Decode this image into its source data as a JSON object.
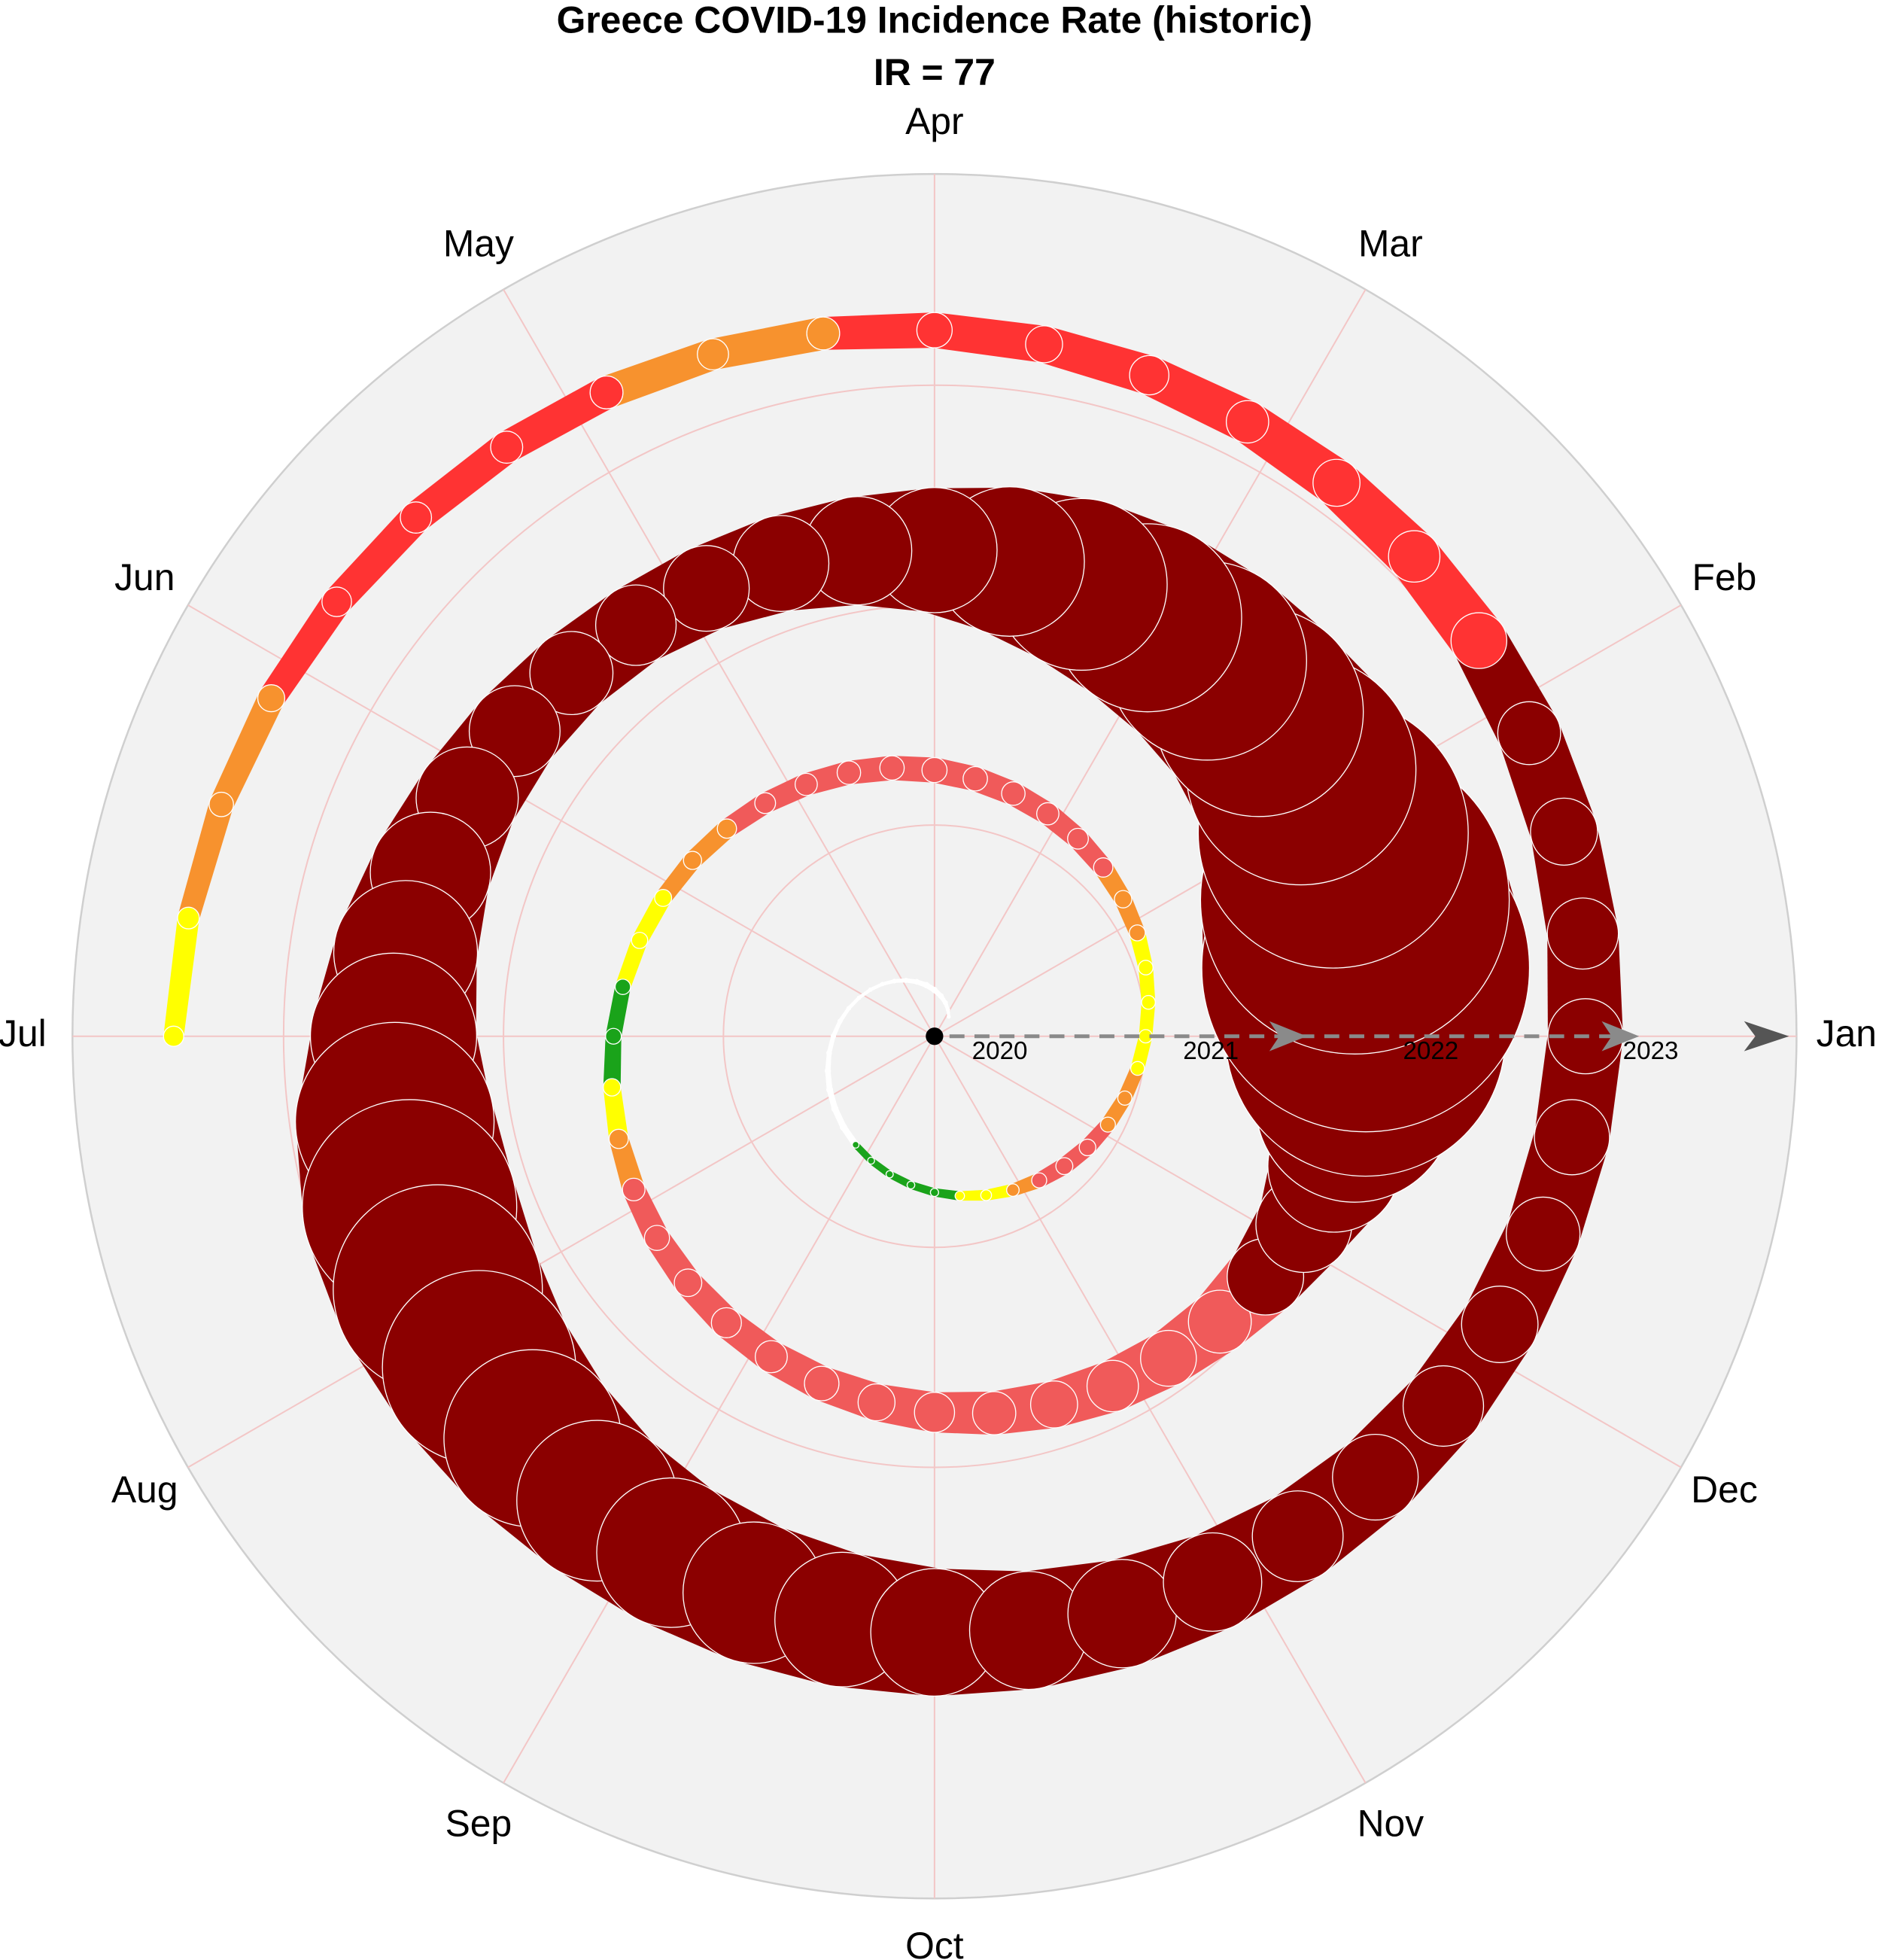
{
  "chart_data": {
    "type": "spiral",
    "title": "Greece COVID-19 Incidence Rate (historic)",
    "subtitle": "IR = 77",
    "categories": [
      "Jan",
      "Feb",
      "Mar",
      "Apr",
      "May",
      "Jun",
      "Jul",
      "Aug",
      "Sep",
      "Oct",
      "Nov",
      "Dec"
    ],
    "x": [
      2020.15,
      2020.175,
      2020.2,
      2020.225,
      2020.25,
      2020.275,
      2020.3,
      2020.325,
      2020.35,
      2020.375,
      2020.4,
      2020.425,
      2020.45,
      2020.475,
      2020.5,
      2020.525,
      2020.55,
      2020.575,
      2020.6,
      2020.625,
      2020.65,
      2020.675,
      2020.7,
      2020.725,
      2020.75,
      2020.775,
      2020.8,
      2020.825,
      2020.85,
      2020.875,
      2020.9,
      2020.925,
      2020.95,
      2020.975,
      2021,
      2021.025,
      2021.05,
      2021.075,
      2021.1,
      2021.125,
      2021.15,
      2021.175,
      2021.2,
      2021.225,
      2021.25,
      2021.275,
      2021.3,
      2021.325,
      2021.35,
      2021.375,
      2021.4,
      2021.425,
      2021.45,
      2021.475,
      2021.5,
      2021.525,
      2021.55,
      2021.575,
      2021.6,
      2021.625,
      2021.65,
      2021.675,
      2021.7,
      2021.725,
      2021.75,
      2021.775,
      2021.8,
      2021.825,
      2021.85,
      2021.875,
      2021.9,
      2021.925,
      2021.95,
      2021.975,
      2022,
      2022.025,
      2022.05,
      2022.075,
      2022.1,
      2022.125,
      2022.15,
      2022.175,
      2022.2,
      2022.225,
      2022.25,
      2022.275,
      2022.3,
      2022.325,
      2022.35,
      2022.375,
      2022.4,
      2022.425,
      2022.45,
      2022.475,
      2022.5,
      2022.525,
      2022.55,
      2022.575,
      2022.6,
      2022.625,
      2022.65,
      2022.675,
      2022.7,
      2022.725,
      2022.75,
      2022.775,
      2022.8,
      2022.825,
      2022.85,
      2022.875,
      2022.9,
      2022.925,
      2022.95,
      2022.975,
      2023,
      2023.025,
      2023.05,
      2023.075,
      2023.1,
      2023.125,
      2023.15,
      2023.175,
      2023.2,
      2023.225,
      2023.25,
      2023.275,
      2023.3,
      2023.325,
      2023.35,
      2023.375,
      2023.4,
      2023.425,
      2023.45,
      2023.475,
      2023.5
    ],
    "values": [
      1,
      2,
      4,
      6,
      8,
      8,
      6,
      4,
      3,
      2,
      2,
      2,
      3,
      4,
      5,
      6,
      8,
      10,
      11,
      12,
      13,
      14,
      15,
      17,
      19,
      24,
      30,
      38,
      50,
      60,
      58,
      50,
      46,
      44,
      42,
      44,
      48,
      55,
      62,
      72,
      80,
      88,
      95,
      100,
      104,
      100,
      95,
      88,
      80,
      72,
      66,
      60,
      56,
      52,
      54,
      62,
      72,
      90,
      104,
      118,
      133,
      145,
      160,
      175,
      195,
      215,
      240,
      270,
      300,
      350,
      450,
      600,
      900,
      1500,
      2300,
      2800,
      2600,
      2200,
      1800,
      1600,
      1500,
      1400,
      1250,
      1050,
      840,
      700,
      600,
      520,
      480,
      500,
      560,
      650,
      800,
      1000,
      1200,
      1500,
      1650,
      1600,
      1450,
      1300,
      1150,
      1050,
      980,
      920,
      860,
      780,
      700,
      620,
      560,
      520,
      480,
      450,
      430,
      440,
      440,
      410,
      380,
      350,
      300,
      270,
      240,
      210,
      190,
      175,
      165,
      150,
      140,
      150,
      145,
      140,
      130,
      115,
      100,
      85,
      77
    ],
    "colors": [
      "#ffffff",
      "#ffffff",
      "#ffffff",
      "#ffffff",
      "#ffffff",
      "#ffffff",
      "#ffffff",
      "#ffffff",
      "#ffffff",
      "#ffffff",
      "#ffffff",
      "#ffffff",
      "#ffffff",
      "#ffffff",
      "#ffffff",
      "#ffffff",
      "#ffffff",
      "#ffffff",
      "#ffffff",
      "#ffffff",
      "#1aa31a",
      "#1aa31a",
      "#1aa31a",
      "#1aa31a",
      "#1aa31a",
      "#ffff00",
      "#ffff00",
      "#f7922e",
      "#f05a5a",
      "#f05a5a",
      "#f05a5a",
      "#f7922e",
      "#f7922e",
      "#ffff00",
      "#ffff00",
      "#ffff00",
      "#ffff00",
      "#f7922e",
      "#f7922e",
      "#f05a5a",
      "#f05a5a",
      "#f05a5a",
      "#f05a5a",
      "#f05a5a",
      "#f05a5a",
      "#f05a5a",
      "#f05a5a",
      "#f05a5a",
      "#f05a5a",
      "#f7922e",
      "#f7922e",
      "#ffff00",
      "#ffff00",
      "#1aa31a",
      "#1aa31a",
      "#ffff00",
      "#f7922e",
      "#f05a5a",
      "#f05a5a",
      "#f05a5a",
      "#f05a5a",
      "#f05a5a",
      "#f05a5a",
      "#f05a5a",
      "#f05a5a",
      "#f05a5a",
      "#f05a5a",
      "#f05a5a",
      "#f05a5a",
      "#f05a5a",
      "#8b0000",
      "#8b0000",
      "#8b0000",
      "#8b0000",
      "#8b0000",
      "#8b0000",
      "#8b0000",
      "#8b0000",
      "#8b0000",
      "#8b0000",
      "#8b0000",
      "#8b0000",
      "#8b0000",
      "#8b0000",
      "#8b0000",
      "#8b0000",
      "#8b0000",
      "#8b0000",
      "#8b0000",
      "#8b0000",
      "#8b0000",
      "#8b0000",
      "#8b0000",
      "#8b0000",
      "#8b0000",
      "#8b0000",
      "#8b0000",
      "#8b0000",
      "#8b0000",
      "#8b0000",
      "#8b0000",
      "#8b0000",
      "#8b0000",
      "#8b0000",
      "#8b0000",
      "#8b0000",
      "#8b0000",
      "#8b0000",
      "#8b0000",
      "#8b0000",
      "#8b0000",
      "#8b0000",
      "#8b0000",
      "#8b0000",
      "#8b0000",
      "#8b0000",
      "#8b0000",
      "#8b0000",
      "#ff3333",
      "#ff3333",
      "#ff3333",
      "#ff3333",
      "#ff3333",
      "#ff3333",
      "#ff3333",
      "#f7922e",
      "#f7922e",
      "#ff3333",
      "#ff3333",
      "#ff3333",
      "#ff3333",
      "#f7922e",
      "#f7922e",
      "#ffff00",
      "#ffff00"
    ],
    "rlim": [
      2020.04,
      2023.96
    ],
    "rticks": [
      2020,
      2021,
      2022,
      2023
    ],
    "grid": true
  }
}
